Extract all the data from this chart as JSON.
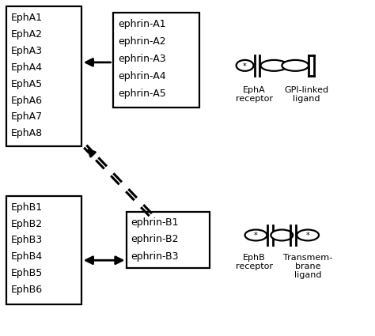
{
  "bg_color": "#ffffff",
  "ephA_receptors": [
    "EphA1",
    "EphA2",
    "EphA3",
    "EphA4",
    "EphA5",
    "EphA6",
    "EphA7",
    "EphA8"
  ],
  "ephA_ligands": [
    "ephrin-A1",
    "ephrin-A2",
    "ephrin-A3",
    "ephrin-A4",
    "ephrin-A5"
  ],
  "ephB_receptors": [
    "EphB1",
    "EphB2",
    "EphB3",
    "EphB4",
    "EphB5",
    "EphB6"
  ],
  "ephB_ligands": [
    "ephrin-B1",
    "ephrin-B2",
    "ephrin-B3"
  ],
  "epha_label1": "EphA",
  "epha_label2": "receptor",
  "gpi_label1": "GPI-linked",
  "gpi_label2": "ligand",
  "ephb_label1": "EphB",
  "ephb_label2": "receptor",
  "trans_label1": "Transmem-",
  "trans_label2": "brane",
  "trans_label3": "ligand",
  "fig_w": 4.74,
  "fig_h": 4.25,
  "dpi": 100
}
